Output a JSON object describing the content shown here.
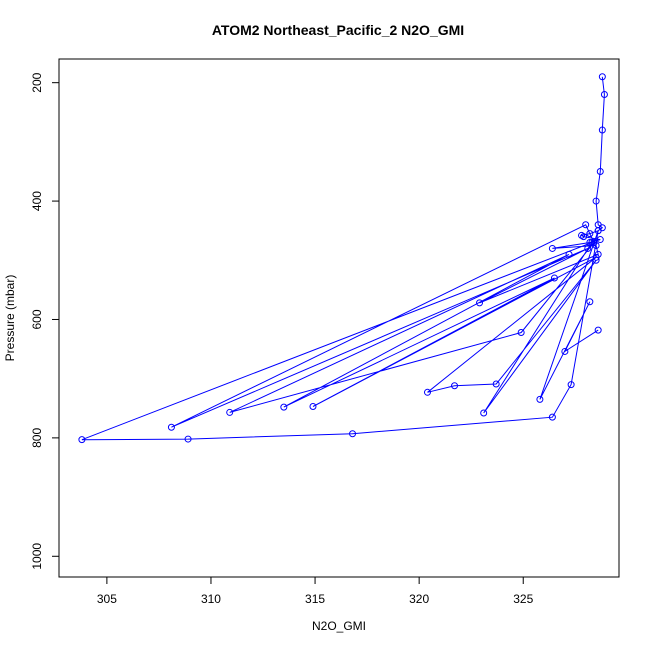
{
  "chart_data": {
    "type": "line",
    "title": "ATOM2 Northeast_Pacific_2 N2O_GMI",
    "xlabel": "N2O_GMI",
    "ylabel": "Pressure (mbar)",
    "xlim": [
      302.7,
      329.6
    ],
    "ylim": [
      1035,
      160
    ],
    "y_reversed": true,
    "x_ticks": [
      305,
      310,
      315,
      320,
      325
    ],
    "y_ticks": [
      200,
      400,
      600,
      800,
      1000
    ],
    "grid": false,
    "marker": "open-circle",
    "color": "#0000ff",
    "series": [
      {
        "x": [
          328.8,
          328.9,
          328.8,
          328.7,
          328.5,
          328.6,
          328.8,
          328.6,
          328.2,
          327.8,
          327.9,
          328.7,
          328.2,
          326.4,
          328.5,
          328.6,
          322.9,
          328.1,
          308.1,
          328.0,
          328.4,
          324.9,
          310.9,
          327.2,
          313.5,
          326.5,
          314.9,
          328.5,
          320.4,
          321.7,
          323.7,
          328.5,
          323.1,
          328.3,
          303.8,
          308.9,
          316.8,
          326.4,
          327.3,
          328.6,
          325.8,
          328.2,
          327.0,
          328.6
        ],
        "y": [
          190,
          220,
          280,
          350,
          400,
          440,
          445,
          450,
          455,
          458,
          460,
          465,
          470,
          480,
          475,
          490,
          572,
          480,
          782,
          440,
          470,
          622,
          757,
          490,
          748,
          530,
          747,
          495,
          723,
          712,
          709,
          500,
          758,
          470,
          803,
          802,
          793,
          765,
          710,
          450,
          735,
          570,
          654,
          618
        ]
      }
    ]
  }
}
